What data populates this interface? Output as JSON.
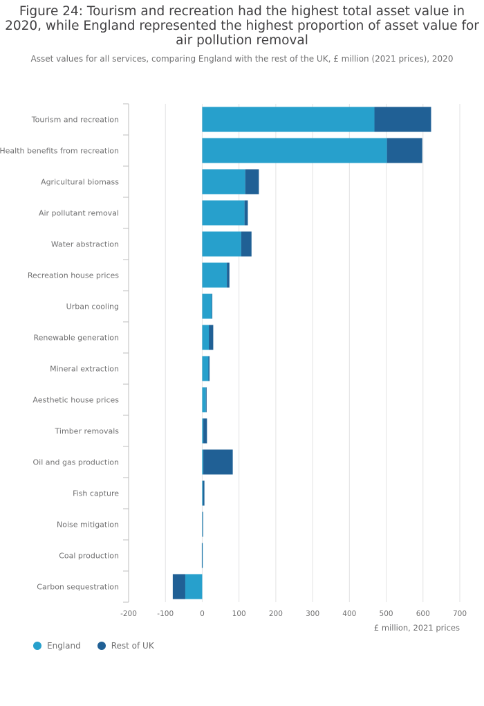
{
  "title": "Figure 24: Tourism and recreation had the highest total asset value in 2020, while England represented the highest proportion of asset value for air pollution removal",
  "subtitle": "Asset values for all services, comparing England with the rest of the UK, £ million (2021 prices), 2020",
  "colors": {
    "england": "#27a0cc",
    "rest_of_uk": "#206095",
    "grid": "#e2e2e3",
    "axis": "#bcbcbd"
  },
  "chart_data": {
    "type": "bar",
    "orientation": "horizontal",
    "stacked": true,
    "categories": [
      "Tourism and recreation",
      "Health benefits from recreation",
      "Agricultural biomass",
      "Air pollutant removal",
      "Water abstraction",
      "Recreation house prices",
      "Urban cooling",
      "Renewable generation",
      "Mineral extraction",
      "Aesthetic house prices",
      "Timber removals",
      "Oil and gas production",
      "Fish capture",
      "Noise mitigation",
      "Coal production",
      "Carbon sequestration"
    ],
    "series": [
      {
        "name": "England",
        "color": "#27a0cc",
        "values": [
          468,
          502,
          117,
          115,
          106,
          67,
          26,
          18,
          17,
          10,
          3,
          3,
          2,
          1,
          0,
          -46
        ]
      },
      {
        "name": "Rest of UK",
        "color": "#206095",
        "values": [
          154,
          96,
          37,
          9,
          28,
          7,
          1,
          12,
          3,
          2,
          10,
          80,
          4,
          0,
          -1,
          -34
        ]
      }
    ],
    "xlabel": "£ million, 2021 prices",
    "xlim": [
      -200,
      700
    ],
    "xticks": [
      -200,
      -100,
      0,
      100,
      200,
      300,
      400,
      500,
      600,
      700
    ],
    "grid": true,
    "legend_position": "bottom-left"
  }
}
